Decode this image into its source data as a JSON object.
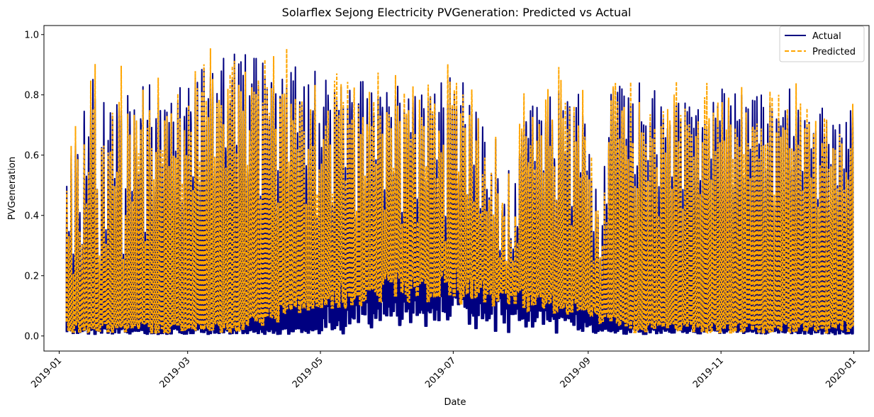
{
  "chart_data": {
    "type": "line",
    "title": "Solarflex Sejong Electricity PVGeneration: Predicted vs Actual",
    "xlabel": "Date",
    "ylabel": "PVGeneration",
    "xlim": [
      "2018-12-25",
      "2020-01-08"
    ],
    "ylim": [
      -0.05,
      1.03
    ],
    "x_ticks": [
      "2019-01",
      "2019-03",
      "2019-05",
      "2019-07",
      "2019-09",
      "2019-11",
      "2020-01"
    ],
    "y_ticks": [
      "0.0",
      "0.2",
      "0.4",
      "0.6",
      "0.8",
      "1.0"
    ],
    "grid": false,
    "legend_position": "top-right",
    "data_range": [
      "2019-01-04",
      "2019-12-31"
    ],
    "series": [
      {
        "name": "Actual",
        "color": "#000080",
        "style": "solid",
        "daily_peak": {
          "2019-01": [
            0.76,
            0.8,
            0.55,
            0.4,
            0.62,
            0.3,
            0.68,
            0.45,
            0.35,
            0.84,
            0.6,
            0.72,
            0.8,
            0.86,
            0.5,
            0.25,
            0.7,
            0.78,
            0.4,
            0.65,
            0.75,
            0.55,
            0.8,
            0.83,
            0.82,
            0.3,
            0.5
          ],
          "2019-02": [
            0.8,
            0.78,
            0.55,
            0.85,
            0.72,
            0.6,
            0.83,
            0.85,
            0.4,
            0.82,
            0.86,
            0.7,
            0.55,
            0.84,
            0.83,
            0.8,
            0.6,
            0.86,
            0.85,
            0.72,
            0.83,
            0.78,
            0.65,
            0.84,
            0.86,
            0.5,
            0.8,
            0.85
          ],
          "2019-03": [
            0.84,
            0.86,
            0.6,
            0.88,
            0.9,
            0.55,
            0.92,
            0.93,
            0.75,
            0.89,
            0.98,
            0.94,
            0.6,
            0.92,
            0.85,
            0.94,
            0.97,
            0.7,
            0.86,
            0.91,
            0.98,
            0.99,
            0.65,
            0.95,
            0.93,
            0.88,
            0.97,
            0.62,
            0.9,
            0.92,
            0.94
          ],
          "2019-04": [
            0.95,
            0.94,
            0.5,
            0.93,
            0.95,
            0.88,
            0.8,
            0.94,
            0.92,
            0.85,
            0.55,
            0.93,
            0.9,
            0.92,
            0.88,
            0.65,
            0.9,
            0.89,
            0.91,
            0.7,
            0.88,
            0.87,
            0.86,
            0.6,
            0.84,
            0.8,
            0.86,
            0.88,
            0.45,
            0.75
          ],
          "2019-05": [
            0.7,
            0.84,
            0.86,
            0.88,
            0.85,
            0.5,
            0.87,
            0.89,
            0.86,
            0.84,
            0.8,
            0.6,
            0.85,
            0.88,
            0.86,
            0.83,
            0.4,
            0.82,
            0.86,
            0.85,
            0.55,
            0.84,
            0.8,
            0.83,
            0.85,
            0.65,
            0.88,
            0.86,
            0.84,
            0.5,
            0.82
          ],
          "2019-06": [
            0.86,
            0.84,
            0.6,
            0.85,
            0.83,
            0.82,
            0.45,
            0.8,
            0.84,
            0.82,
            0.7,
            0.85,
            0.83,
            0.5,
            0.81,
            0.84,
            0.86,
            0.55,
            0.82,
            0.85,
            0.83,
            0.86,
            0.6,
            0.8,
            0.84,
            0.82,
            0.4,
            0.85,
            0.86,
            0.82
          ],
          "2019-07": [
            0.84,
            0.85,
            0.6,
            0.82,
            0.85,
            0.8,
            0.5,
            0.84,
            0.82,
            0.6,
            0.78,
            0.75,
            0.45,
            0.7,
            0.65,
            0.55,
            0.5,
            0.6,
            0.4,
            0.68,
            0.55,
            0.3,
            0.45,
            0.5,
            0.25,
            0.6,
            0.35,
            0.3,
            0.55,
            0.4,
            0.7
          ],
          "2019-08": [
            0.75,
            0.8,
            0.82,
            0.7,
            0.78,
            0.84,
            0.6,
            0.8,
            0.82,
            0.76,
            0.55,
            0.78,
            0.8,
            0.83,
            0.82,
            0.65,
            0.5,
            0.84,
            0.8,
            0.78,
            0.7,
            0.82,
            0.8,
            0.45,
            0.76,
            0.82,
            0.84,
            0.6,
            0.8,
            0.78,
            0.55
          ],
          "2019-09": [
            0.62,
            0.55,
            0.35,
            0.5,
            0.45,
            0.3,
            0.4,
            0.6,
            0.5,
            0.75,
            0.85,
            0.86,
            0.8,
            0.84,
            0.86,
            0.85,
            0.82,
            0.7,
            0.84,
            0.8,
            0.78,
            0.6,
            0.65,
            0.84,
            0.8,
            0.82,
            0.75,
            0.6,
            0.82,
            0.8
          ],
          "2019-10": [
            0.82,
            0.7,
            0.55,
            0.8,
            0.82,
            0.76,
            0.8,
            0.81,
            0.6,
            0.83,
            0.84,
            0.82,
            0.8,
            0.5,
            0.81,
            0.8,
            0.84,
            0.78,
            0.72,
            0.83,
            0.82,
            0.6,
            0.8,
            0.81,
            0.78,
            0.8,
            0.65,
            0.82,
            0.8,
            0.84,
            0.79
          ],
          "2019-11": [
            0.83,
            0.82,
            0.7,
            0.8,
            0.84,
            0.55,
            0.82,
            0.8,
            0.78,
            0.83,
            0.6,
            0.81,
            0.8,
            0.65,
            0.82,
            0.79,
            0.83,
            0.7,
            0.8,
            0.78,
            0.6,
            0.77,
            0.81,
            0.8,
            0.5,
            0.79,
            0.82,
            0.8,
            0.75,
            0.78
          ],
          "2019-12": [
            0.8,
            0.82,
            0.6,
            0.77,
            0.8,
            0.75,
            0.78,
            0.55,
            0.76,
            0.8,
            0.79,
            0.65,
            0.77,
            0.75,
            0.5,
            0.74,
            0.78,
            0.76,
            0.72,
            0.65,
            0.6,
            0.75,
            0.74,
            0.55,
            0.73,
            0.72,
            0.6,
            0.72,
            0.7,
            0.78,
            0.84
          ]
        }
      },
      {
        "name": "Predicted",
        "color": "#ffa500",
        "style": "dashed"
      }
    ]
  }
}
